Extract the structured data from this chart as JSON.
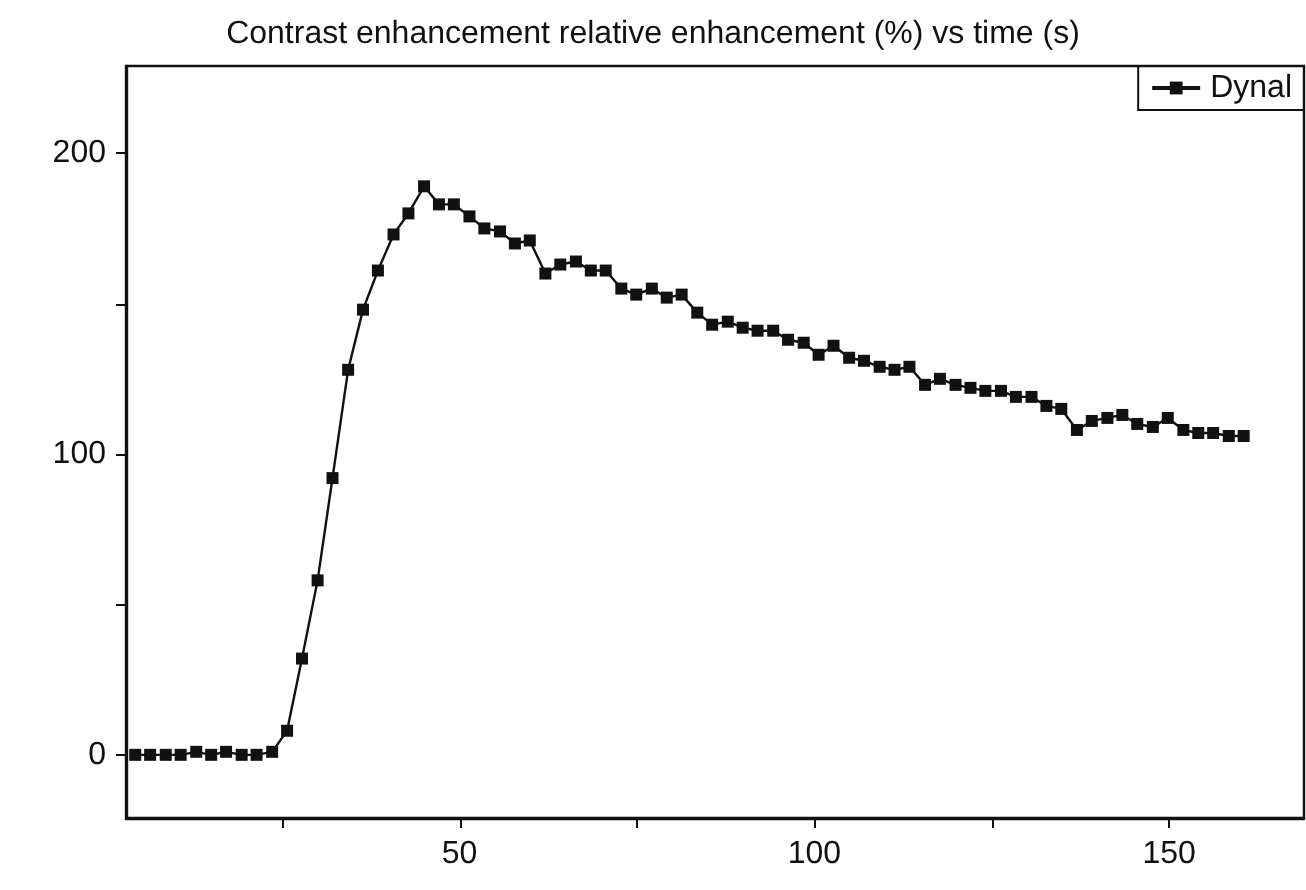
{
  "chart_data": {
    "type": "line",
    "title": "Contrast enhancement relative enhancement (%) vs time (s)",
    "x": [
      4.3,
      6.4,
      8.6,
      10.7,
      12.9,
      15.0,
      17.1,
      19.3,
      21.4,
      23.6,
      25.7,
      27.8,
      30.0,
      32.1,
      34.3,
      36.4,
      38.5,
      40.7,
      42.8,
      45.0,
      47.1,
      49.2,
      51.4,
      53.5,
      55.7,
      57.8,
      59.9,
      62.1,
      64.2,
      66.4,
      68.5,
      70.6,
      72.8,
      74.9,
      77.1,
      79.2,
      81.3,
      83.5,
      85.6,
      87.8,
      89.9,
      92.0,
      94.2,
      96.3,
      98.5,
      100.6,
      102.7,
      104.9,
      107.0,
      109.2,
      111.3,
      113.4,
      115.6,
      117.7,
      119.9,
      122.0,
      124.1,
      126.3,
      128.4,
      130.6,
      132.7,
      134.8,
      137.0,
      139.1,
      141.3,
      143.4,
      145.5,
      147.7,
      149.8,
      152.0,
      154.1,
      156.2,
      158.4,
      160.5
    ],
    "series": [
      {
        "name": "Dynal",
        "color": "#111111",
        "values": [
          0,
          0,
          0,
          0,
          1,
          0,
          1,
          0,
          0,
          1,
          8,
          32,
          58,
          92,
          128,
          148,
          161,
          173,
          180,
          189,
          183,
          183,
          179,
          175,
          174,
          170,
          171,
          160,
          163,
          164,
          161,
          161,
          155,
          153,
          155,
          152,
          153,
          147,
          143,
          144,
          142,
          141,
          141,
          138,
          137,
          133,
          136,
          132,
          131,
          129,
          128,
          129,
          123,
          125,
          123,
          122,
          121,
          121,
          119,
          119,
          116,
          115,
          108,
          111,
          112,
          113,
          110,
          109,
          112,
          108,
          107,
          107,
          106,
          106
        ]
      }
    ],
    "xlim": [
      3,
      169
    ],
    "ylim": [
      -21,
      229
    ],
    "xticks": [
      {
        "value": 25,
        "label": null
      },
      50,
      {
        "value": 75,
        "label": null
      },
      100,
      {
        "value": 125,
        "label": null
      },
      150
    ],
    "yticks": [
      0,
      {
        "value": 50,
        "label": null
      },
      100,
      {
        "value": 150,
        "label": null
      },
      200
    ],
    "grid": false,
    "legend": "top right",
    "marker": "square",
    "line_style": "solid"
  }
}
